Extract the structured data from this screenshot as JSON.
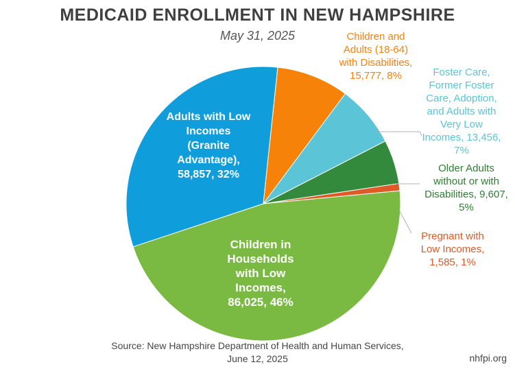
{
  "chart_data": {
    "type": "pie",
    "title": "MEDICAID ENROLLMENT IN NEW HAMPSHIRE",
    "subtitle": "May 31, 2025",
    "slices": [
      {
        "label_lines": [
          "Children in",
          "Households",
          "with Low",
          "Incomes,",
          "86,025, 46%"
        ],
        "value": 86025,
        "percent": 46,
        "color": "#7aba42",
        "label_color": "#ffffff"
      },
      {
        "label_lines": [
          "Adults with Low",
          "Incomes",
          "(Granite",
          "Advantage),",
          "58,857, 32%"
        ],
        "value": 58857,
        "percent": 32,
        "color": "#0f9ddb",
        "label_color": "#ffffff"
      },
      {
        "label_lines": [
          "Children and",
          "Adults (18-64)",
          "with Disabilities,",
          "15,777, 8%"
        ],
        "value": 15777,
        "percent": 8,
        "color": "#f7820a",
        "label_color": "#f7820a"
      },
      {
        "label_lines": [
          "Foster Care,",
          "Former Foster",
          "Care, Adoption,",
          "and Adults with",
          "Very Low",
          "Incomes, 13,456,",
          "7%"
        ],
        "value": 13456,
        "percent": 7,
        "color": "#5bc4d6",
        "label_color": "#5bc4d6"
      },
      {
        "label_lines": [
          "Older Adults",
          "without or with",
          "Disabilities, 9,607,",
          "5%"
        ],
        "value": 9607,
        "percent": 5,
        "color": "#338a3c",
        "label_color": "#2e7d32"
      },
      {
        "label_lines": [
          "Pregnant with",
          "Low Incomes,",
          "1,585, 1%"
        ],
        "value": 1585,
        "percent": 1,
        "color": "#e05a28",
        "label_color": "#e05a28"
      }
    ]
  },
  "source": {
    "line1": "Source: New Hampshire Department of Health and Human Services,",
    "line2": "June 12, 2025"
  },
  "brand": "nhfpi.org"
}
